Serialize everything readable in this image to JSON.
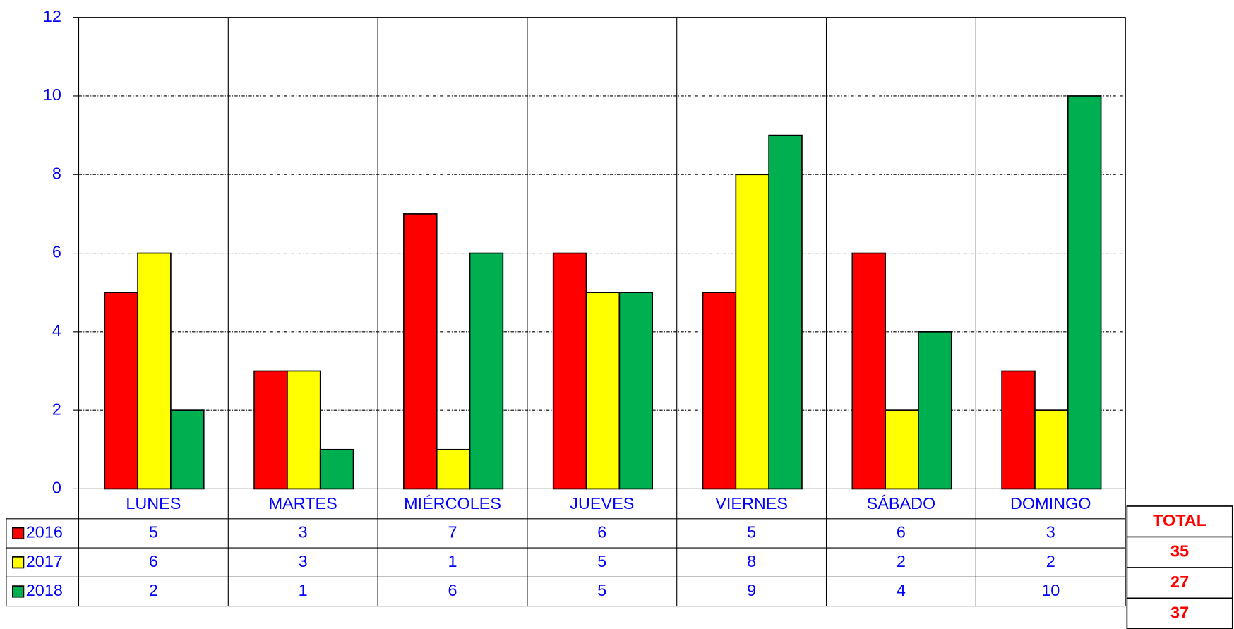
{
  "chart_data": {
    "type": "bar",
    "categories": [
      "LUNES",
      "MARTES",
      "MIÉRCOLES",
      "JUEVES",
      "VIERNES",
      "SÁBADO",
      "DOMINGO"
    ],
    "series": [
      {
        "name": "2016",
        "color": "#ff0000",
        "values": [
          5,
          3,
          7,
          6,
          5,
          6,
          3
        ]
      },
      {
        "name": "2017",
        "color": "#ffff00",
        "values": [
          6,
          3,
          1,
          5,
          8,
          2,
          2
        ]
      },
      {
        "name": "2018",
        "color": "#00b050",
        "values": [
          2,
          1,
          6,
          5,
          9,
          4,
          10
        ]
      }
    ],
    "ylim": [
      0,
      12
    ],
    "yticks": [
      0,
      2,
      4,
      6,
      8,
      10,
      12
    ],
    "grid": true,
    "total_label": "TOTAL",
    "totals": [
      35,
      27,
      37
    ]
  }
}
